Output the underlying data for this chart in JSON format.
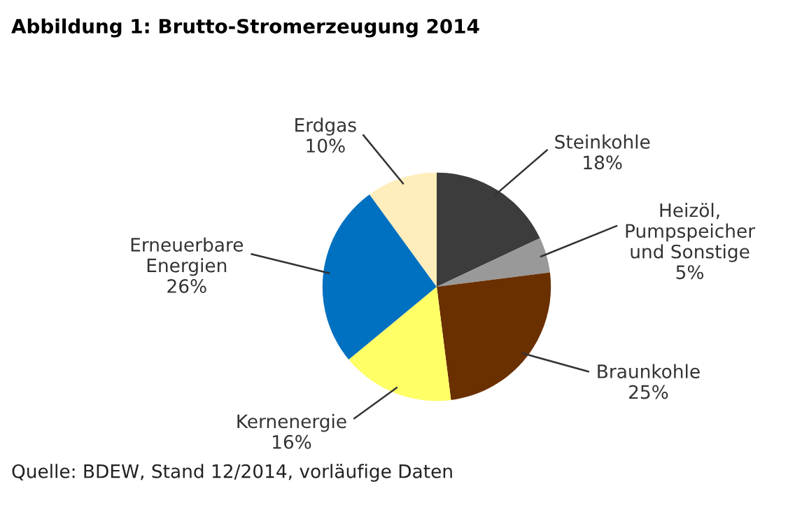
{
  "chart_data": {
    "type": "pie",
    "title": "Abbildung 1: Brutto-Stromerzeugung 2014",
    "categories": [
      "Steinkohle",
      "Heizöl,\nPumpspeicher\nund Sonstige",
      "Braunkohle",
      "Kernenergie",
      "Erneuerbare\nEnergien",
      "Erdgas"
    ],
    "values": [
      18,
      5,
      25,
      16,
      26,
      10
    ],
    "value_labels": [
      "18%",
      "5%",
      "25%",
      "16%",
      "26%",
      "10%"
    ],
    "colors": [
      "#3c3c3c",
      "#999999",
      "#6b3000",
      "#ffff66",
      "#0070c0",
      "#ffeebb"
    ],
    "annotations": [
      "Quelle: BDEW, Stand 12/2014, vorläufige Daten"
    ]
  }
}
